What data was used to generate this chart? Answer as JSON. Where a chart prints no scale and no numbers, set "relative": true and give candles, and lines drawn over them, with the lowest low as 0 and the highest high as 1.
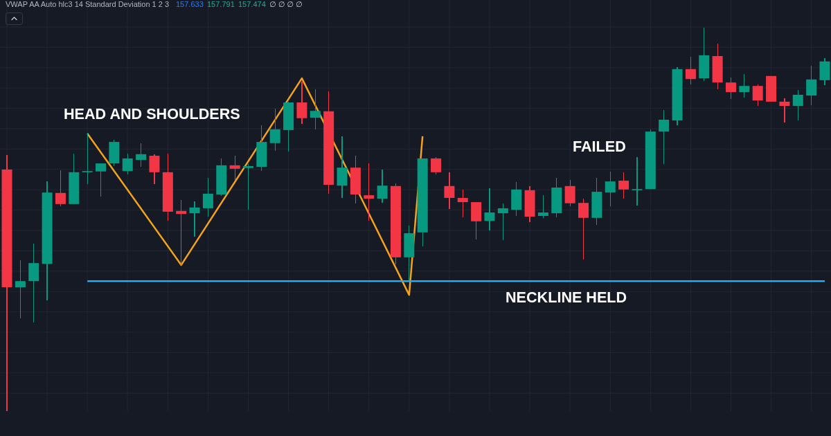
{
  "chart_data": {
    "type": "candlestick",
    "relative": true,
    "grid": true,
    "categories": [
      null,
      null,
      null,
      null,
      null,
      null,
      null,
      null,
      null,
      null,
      null,
      null,
      null,
      null,
      null,
      null,
      null,
      null,
      null,
      null,
      null,
      null,
      null,
      null,
      null,
      null,
      null,
      null,
      null,
      null,
      null,
      null,
      null,
      null,
      null,
      null,
      null,
      null,
      null,
      null,
      null,
      null,
      null,
      null,
      null,
      null,
      null,
      null,
      null,
      null,
      null,
      null,
      null,
      null,
      null,
      null,
      null,
      null,
      null,
      null,
      null,
      null
    ],
    "ohlc": [
      [
        0.63,
        0.668,
        0,
        0.323
      ],
      [
        0.323,
        0.394,
        0.242,
        0.339
      ],
      [
        0.339,
        0.437,
        0.231,
        0.386
      ],
      [
        0.384,
        0.599,
        0.289,
        0.57
      ],
      [
        0.569,
        0.628,
        0.534,
        0.54
      ],
      [
        0.54,
        0.671,
        0.54,
        0.623
      ],
      [
        0.623,
        0.726,
        0.592,
        0.626
      ],
      [
        0.625,
        0.646,
        0.56,
        0.646
      ],
      [
        0.646,
        0.708,
        0.639,
        0.702
      ],
      [
        0.626,
        0.671,
        0.617,
        0.659
      ],
      [
        0.655,
        0.699,
        0.637,
        0.67
      ],
      [
        0.666,
        0.67,
        0.592,
        0.623
      ],
      [
        0.623,
        0.671,
        0.496,
        0.52
      ],
      [
        0.522,
        0.551,
        0.381,
        0.514
      ],
      [
        0.516,
        0.547,
        0.455,
        0.531
      ],
      [
        0.529,
        0.608,
        0.507,
        0.567
      ],
      [
        0.565,
        0.659,
        0.561,
        0.641
      ],
      [
        0.641,
        0.666,
        0.603,
        0.632
      ],
      [
        0.634,
        0.644,
        0.525,
        0.639
      ],
      [
        0.637,
        0.745,
        0.626,
        0.702
      ],
      [
        0.699,
        0.789,
        0.679,
        0.735
      ],
      [
        0.733,
        0.807,
        0.677,
        0.805
      ],
      [
        0.805,
        0.859,
        0.749,
        0.764
      ],
      [
        0.765,
        0.839,
        0.735,
        0.783
      ],
      [
        0.782,
        0.834,
        0.567,
        0.59
      ],
      [
        0.588,
        0.717,
        0.556,
        0.635
      ],
      [
        0.635,
        0.666,
        0.542,
        0.565
      ],
      [
        0.563,
        0.646,
        0.496,
        0.554
      ],
      [
        0.554,
        0.63,
        0.543,
        0.588
      ],
      [
        0.587,
        0.594,
        0.383,
        0.401
      ],
      [
        0.401,
        0.484,
        0.341,
        0.464
      ],
      [
        0.466,
        0.659,
        0.43,
        0.659
      ],
      [
        0.659,
        0.662,
        0.617,
        0.623
      ],
      [
        0.587,
        0.623,
        0.527,
        0.556
      ],
      [
        0.556,
        0.578,
        0.505,
        0.545
      ],
      [
        0.545,
        0.545,
        0.448,
        0.495
      ],
      [
        0.496,
        0.581,
        0.471,
        0.518
      ],
      [
        0.516,
        0.542,
        0.446,
        0.529
      ],
      [
        0.525,
        0.597,
        0.509,
        0.578
      ],
      [
        0.576,
        0.587,
        0.493,
        0.507
      ],
      [
        0.509,
        0.563,
        0.504,
        0.518
      ],
      [
        0.516,
        0.608,
        0.505,
        0.583
      ],
      [
        0.587,
        0.603,
        0.534,
        0.542
      ],
      [
        0.543,
        0.554,
        0.395,
        0.504
      ],
      [
        0.504,
        0.608,
        0.486,
        0.572
      ],
      [
        0.57,
        0.625,
        0.534,
        0.599
      ],
      [
        0.601,
        0.623,
        0.554,
        0.578
      ],
      [
        0.576,
        0.662,
        0.536,
        0.579
      ],
      [
        0.579,
        0.735,
        0.579,
        0.729
      ],
      [
        0.729,
        0.785,
        0.644,
        0.76
      ],
      [
        0.758,
        0.897,
        0.745,
        0.892
      ],
      [
        0.892,
        0.924,
        0.852,
        0.866
      ],
      [
        0.868,
        1,
        0.861,
        0.928
      ],
      [
        0.926,
        0.958,
        0.839,
        0.857
      ],
      [
        0.857,
        0.87,
        0.814,
        0.832
      ],
      [
        0.832,
        0.879,
        0.818,
        0.848
      ],
      [
        0.848,
        0.852,
        0.796,
        0.81
      ],
      [
        0.874,
        0.874,
        0.807,
        0.807
      ],
      [
        0.807,
        0.816,
        0.753,
        0.796
      ],
      [
        0.796,
        0.838,
        0.758,
        0.825
      ],
      [
        0.823,
        0.901,
        0.798,
        0.865
      ],
      [
        0.863,
        0.921,
        0.85,
        0.912
      ]
    ],
    "colors": [
      "#f23645",
      "#089981",
      "#089981",
      "#089981",
      "#f23645",
      "#089981",
      "#089981",
      "#089981",
      "#089981",
      "#089981",
      "#089981",
      "#f23645",
      "#f23645",
      "#f23645",
      "#089981",
      "#089981",
      "#089981",
      "#f23645",
      "#089981",
      "#089981",
      "#089981",
      "#089981",
      "#f23645",
      "#089981",
      "#f23645",
      "#089981",
      "#f23645",
      "#f23645",
      "#089981",
      "#f23645",
      "#089981",
      "#089981",
      "#f23645",
      "#f23645",
      "#f23645",
      "#f23645",
      "#089981",
      "#089981",
      "#089981",
      "#f23645",
      "#089981",
      "#089981",
      "#f23645",
      "#f23645",
      "#089981",
      "#089981",
      "#f23645",
      "#089981",
      "#089981",
      "#089981",
      "#089981",
      "#f23645",
      "#089981",
      "#f23645",
      "#f23645",
      "#089981",
      "#f23645",
      "#f23645",
      "#f23645",
      "#089981",
      "#089981",
      "#089981"
    ],
    "series": [
      {
        "type": "line",
        "color": "#f5a21c",
        "values": [
          null,
          null,
          null,
          null,
          null,
          null,
          0.724,
          null,
          null,
          null,
          null,
          null,
          null,
          0.381,
          null,
          null,
          null,
          null,
          null,
          null,
          null,
          null,
          0.868,
          null,
          null,
          null,
          null,
          null,
          null,
          null,
          0.303,
          0.717,
          null,
          null,
          null,
          null,
          null,
          null,
          null,
          null,
          null,
          null,
          null,
          null,
          null,
          null,
          null,
          null,
          null,
          null,
          null,
          null,
          null,
          null,
          null,
          null,
          null,
          null,
          null,
          null,
          null,
          null
        ]
      },
      {
        "type": "line",
        "color": "#2eaaf0",
        "values": [
          null,
          null,
          null,
          null,
          null,
          null,
          0.339,
          null,
          null,
          null,
          null,
          null,
          null,
          null,
          null,
          null,
          null,
          null,
          null,
          null,
          null,
          null,
          null,
          null,
          null,
          null,
          null,
          null,
          null,
          null,
          null,
          null,
          null,
          null,
          null,
          null,
          null,
          null,
          null,
          null,
          null,
          null,
          null,
          null,
          null,
          null,
          null,
          null,
          null,
          null,
          null,
          null,
          null,
          null,
          null,
          null,
          null,
          null,
          null,
          null,
          null,
          0.339
        ]
      }
    ],
    "annotations": [
      "VWAP AA Auto hlc3 14 Standard Deviation 1 2 3",
      "157.633",
      "157.791",
      "157.474",
      "∅ ∅ ∅ ∅",
      "HEAD AND SHOULDERS",
      "FAILED",
      "NECKLINE HELD"
    ]
  }
}
